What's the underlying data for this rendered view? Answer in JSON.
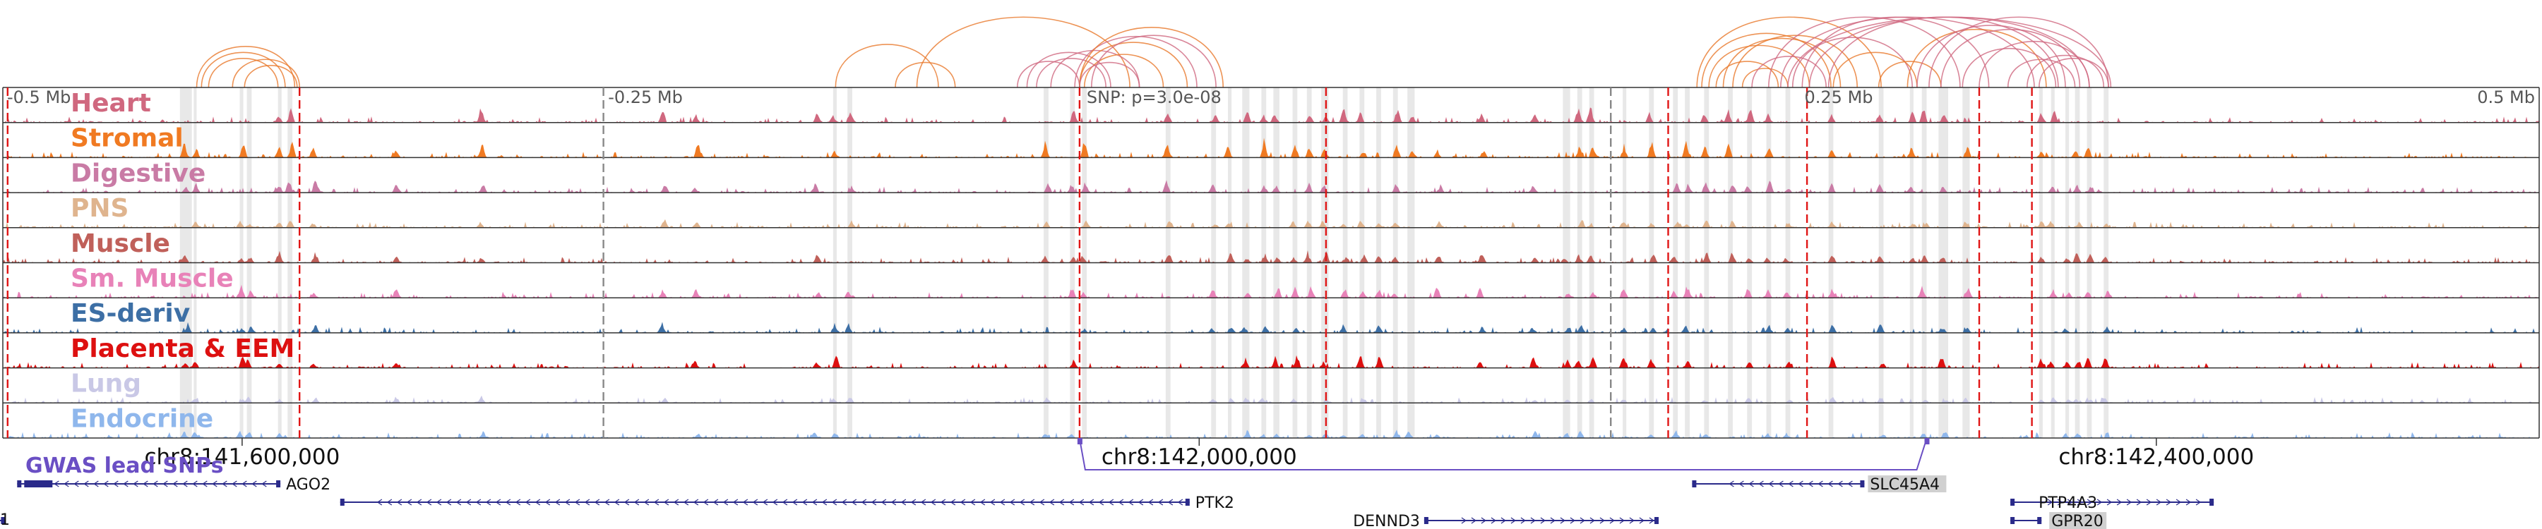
{
  "chart_data": {
    "type": "genome-browser-tracks",
    "region": {
      "chrom": "chr8",
      "start": 141500000,
      "end": 142560000
    },
    "center_snp": {
      "position": 141950000,
      "label": "SNP: p=3.0e-08"
    },
    "scale_labels": [
      "-0.5 Mb",
      "-0.25 Mb",
      "SNP: p=3.0e-08",
      "0.25 Mb",
      "0.5 Mb"
    ],
    "scale_positions": [
      141500000,
      141750000,
      141950000,
      142250000,
      142500000
    ],
    "tracks": [
      {
        "name": "Heart",
        "color": "#D0687F"
      },
      {
        "name": "Stromal",
        "color": "#F07A22"
      },
      {
        "name": "Digestive",
        "color": "#C97BA5"
      },
      {
        "name": "PNS",
        "color": "#DFB48E"
      },
      {
        "name": "Muscle",
        "color": "#C0605A"
      },
      {
        "name": "Sm. Muscle",
        "color": "#E882B8"
      },
      {
        "name": "ES-deriv",
        "color": "#3D6FA5"
      },
      {
        "name": "Placenta & EEM",
        "color": "#DD1010"
      },
      {
        "name": "Lung",
        "color": "#C9C8E6"
      },
      {
        "name": "Endocrine",
        "color": "#8FB7EC"
      }
    ],
    "coordinate_labels": [
      {
        "text": "chr8:141,600,000",
        "position": 141600000
      },
      {
        "text": "chr8:142,000,000",
        "position": 142000000
      },
      {
        "text": "chr8:142,400,000",
        "position": 142400000
      }
    ],
    "gwas_track": {
      "label": "GWAS lead SNPs",
      "color": "#6A4FC4",
      "snp_positions": [
        141950000,
        142304000
      ]
    },
    "genes": [
      {
        "name": "AGO2",
        "start": 141506000,
        "end": 141616000,
        "strand": "-",
        "row": 0
      },
      {
        "name": "PTK2",
        "start": 141641000,
        "end": 141996000,
        "strand": "-",
        "row": 1
      },
      {
        "name": "DENND3",
        "start": 142094000,
        "end": 142192000,
        "strand": "+",
        "row": 2
      },
      {
        "name": "SLC45A4",
        "start": 142206000,
        "end": 142278000,
        "strand": "-",
        "row": 0
      },
      {
        "name": "PTP4A3",
        "start": 142339000,
        "end": 142424000,
        "strand": "+",
        "row": 1
      },
      {
        "name": "GPR20",
        "start": 142339000,
        "end": 142352000,
        "strand": "-",
        "row": 2
      },
      {
        "name": "",
        "start": 141493000,
        "end": 141501000,
        "strand": "+",
        "row": 2
      }
    ],
    "red_lines": [
      141502000,
      141624000,
      141950000,
      142053000,
      142196000,
      142254000,
      142326000,
      142348000
    ],
    "gray_lines": [
      141751000,
      142172000
    ],
    "highlight_regions": [
      [
        141574000,
        141579000
      ],
      [
        141579800,
        141581000
      ],
      [
        141599000,
        141600500
      ],
      [
        141602000,
        141604000
      ],
      [
        141615000,
        141616500
      ],
      [
        141619000,
        141621000
      ],
      [
        141847000,
        141848500
      ],
      [
        141853000,
        141855000
      ],
      [
        141935000,
        141937000
      ],
      [
        141946000,
        141948000
      ],
      [
        141951000,
        141953000
      ],
      [
        141986000,
        141988000
      ],
      [
        142005000,
        142007000
      ],
      [
        142012000,
        142013500
      ],
      [
        142018000,
        142021000
      ],
      [
        142026000,
        142028000
      ],
      [
        142031000,
        142033500
      ],
      [
        142039000,
        142041000
      ],
      [
        142045000,
        142047000
      ],
      [
        142051000,
        142054000
      ],
      [
        142060000,
        142062000
      ],
      [
        142067000,
        142069000
      ],
      [
        142074000,
        142076000
      ],
      [
        142081000,
        142083000
      ],
      [
        142087000,
        142090000
      ],
      [
        142152000,
        142155000
      ],
      [
        142158000,
        142160000
      ],
      [
        142163000,
        142165000
      ],
      [
        142177000,
        142178500
      ],
      [
        142188000,
        142190000
      ],
      [
        142198000,
        142200000
      ],
      [
        142203000,
        142205000
      ],
      [
        142211000,
        142213000
      ],
      [
        142221000,
        142223000
      ],
      [
        142229000,
        142231000
      ],
      [
        142237000,
        142239000
      ],
      [
        142245000,
        142247000
      ],
      [
        142263000,
        142265000
      ],
      [
        142284000,
        142286000
      ],
      [
        142297000,
        142298500
      ],
      [
        142302000,
        142304000
      ],
      [
        142309000,
        142313000
      ],
      [
        142319000,
        142322000
      ],
      [
        142351000,
        142352500
      ],
      [
        142356000,
        142357500
      ],
      [
        142362000,
        142363500
      ],
      [
        142366000,
        142368000
      ],
      [
        142371000,
        142373000
      ],
      [
        142378000,
        142380000
      ]
    ],
    "arcs": [
      {
        "from": 141581000,
        "to": 141622000,
        "color": "#E8782A"
      },
      {
        "from": 141583000,
        "to": 141618000,
        "color": "#E8782A"
      },
      {
        "from": 141586000,
        "to": 141615000,
        "color": "#E8782A"
      },
      {
        "from": 141596000,
        "to": 141624000,
        "color": "#E8782A"
      },
      {
        "from": 141601000,
        "to": 141623000,
        "color": "#E8782A"
      },
      {
        "from": 141848000,
        "to": 141891000,
        "color": "#E8782A"
      },
      {
        "from": 141873000,
        "to": 141898000,
        "color": "#E8782A"
      },
      {
        "from": 141882000,
        "to": 141971000,
        "color": "#E8782A"
      },
      {
        "from": 141924000,
        "to": 141950000,
        "color": "#D0687F"
      },
      {
        "from": 141928000,
        "to": 141963000,
        "color": "#D0687F"
      },
      {
        "from": 141932000,
        "to": 141961000,
        "color": "#D0687F"
      },
      {
        "from": 141938000,
        "to": 141975000,
        "color": "#D0687F"
      },
      {
        "from": 141948000,
        "to": 141999000,
        "color": "#D0687F"
      },
      {
        "from": 141950000,
        "to": 142010000,
        "color": "#E8782A"
      },
      {
        "from": 141950000,
        "to": 141995000,
        "color": "#E8782A"
      },
      {
        "from": 141952000,
        "to": 141985000,
        "color": "#E8782A"
      },
      {
        "from": 141955000,
        "to": 142007000,
        "color": "#D0687F"
      },
      {
        "from": 141950000,
        "to": 141975000,
        "color": "#D0687F"
      },
      {
        "from": 142208000,
        "to": 142285000,
        "color": "#E8782A"
      },
      {
        "from": 142210000,
        "to": 142264000,
        "color": "#E8782A"
      },
      {
        "from": 142213000,
        "to": 142255000,
        "color": "#E8782A"
      },
      {
        "from": 142216000,
        "to": 142242000,
        "color": "#E8782A"
      },
      {
        "from": 142219000,
        "to": 142268000,
        "color": "#E8782A"
      },
      {
        "from": 142223000,
        "to": 142275000,
        "color": "#E8782A"
      },
      {
        "from": 142227000,
        "to": 142246000,
        "color": "#E8782A"
      },
      {
        "from": 142231000,
        "to": 142262000,
        "color": "#D0687F"
      },
      {
        "from": 142238000,
        "to": 142318000,
        "color": "#D0687F"
      },
      {
        "from": 142243000,
        "to": 142349000,
        "color": "#D0687F"
      },
      {
        "from": 142246000,
        "to": 142381000,
        "color": "#D0687F"
      },
      {
        "from": 142248000,
        "to": 142298000,
        "color": "#D0687F"
      },
      {
        "from": 142252000,
        "to": 142330000,
        "color": "#D0687F"
      },
      {
        "from": 142255000,
        "to": 142372000,
        "color": "#D0687F"
      },
      {
        "from": 142263000,
        "to": 142359000,
        "color": "#D0687F"
      },
      {
        "from": 142265000,
        "to": 142300000,
        "color": "#E8782A"
      },
      {
        "from": 142284000,
        "to": 142310000,
        "color": "#E8782A"
      },
      {
        "from": 142296000,
        "to": 142354000,
        "color": "#E8782A"
      },
      {
        "from": 142300000,
        "to": 142362000,
        "color": "#D0687F"
      },
      {
        "from": 142305000,
        "to": 142380000,
        "color": "#D0687F"
      },
      {
        "from": 142310000,
        "to": 142368000,
        "color": "#D0687F"
      },
      {
        "from": 142319000,
        "to": 142358000,
        "color": "#D0687F"
      },
      {
        "from": 142326000,
        "to": 142372000,
        "color": "#D0687F"
      },
      {
        "from": 142338000,
        "to": 142366000,
        "color": "#D0687F"
      },
      {
        "from": 142346000,
        "to": 142378000,
        "color": "#D0687F"
      },
      {
        "from": 142351000,
        "to": 142380000,
        "color": "#D0687F"
      }
    ]
  }
}
